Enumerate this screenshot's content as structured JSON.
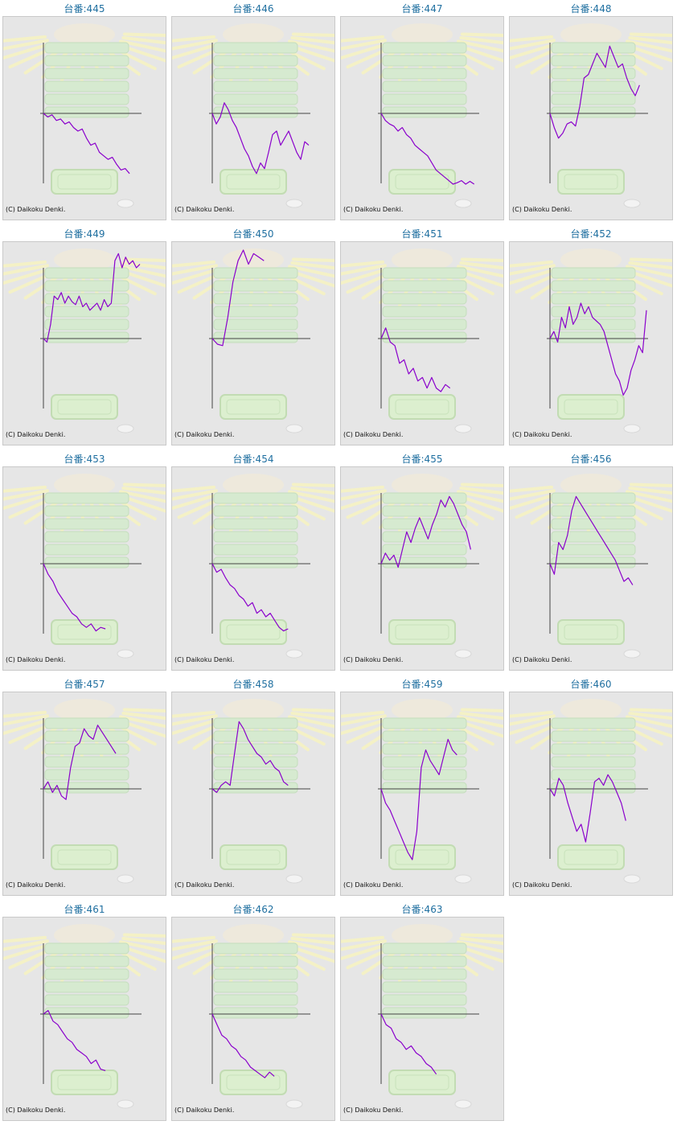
{
  "colors": {
    "title": "#1f6fa0",
    "line": "#8a00cc",
    "axis": "#444444",
    "background": "#e6e6e6"
  },
  "copyright": "(C) Daikoku Denki.",
  "title_prefix": "台番:",
  "chart_data": [
    {
      "type": "line",
      "title": "台番:445",
      "values": [
        0,
        -0.05,
        -0.02,
        -0.1,
        -0.08,
        -0.15,
        -0.12,
        -0.2,
        -0.25,
        -0.22,
        -0.35,
        -0.45,
        -0.42,
        -0.55,
        -0.6,
        -0.65,
        -0.62,
        -0.72,
        -0.8,
        -0.78,
        -0.85
      ]
    },
    {
      "type": "line",
      "title": "台番:446",
      "values": [
        0,
        -0.15,
        -0.05,
        0.15,
        0.05,
        -0.1,
        -0.2,
        -0.35,
        -0.5,
        -0.6,
        -0.75,
        -0.85,
        -0.7,
        -0.78,
        -0.55,
        -0.3,
        -0.25,
        -0.45,
        -0.35,
        -0.25,
        -0.4,
        -0.55,
        -0.65,
        -0.4,
        -0.45
      ]
    },
    {
      "type": "line",
      "title": "台番:447",
      "values": [
        0,
        -0.1,
        -0.15,
        -0.18,
        -0.25,
        -0.2,
        -0.3,
        -0.35,
        -0.45,
        -0.5,
        -0.55,
        -0.6,
        -0.7,
        -0.8,
        -0.85,
        -0.9,
        -0.95,
        -1,
        -0.98,
        -0.95,
        -1,
        -0.96,
        -1
      ]
    },
    {
      "type": "line",
      "title": "台番:448",
      "values": [
        0,
        -0.2,
        -0.35,
        -0.28,
        -0.15,
        -0.12,
        -0.18,
        0.1,
        0.5,
        0.55,
        0.7,
        0.85,
        0.75,
        0.65,
        0.95,
        0.8,
        0.65,
        0.7,
        0.5,
        0.35,
        0.25,
        0.4
      ]
    },
    {
      "type": "line",
      "title": "台番:449",
      "values": [
        0,
        -0.05,
        0.2,
        0.6,
        0.55,
        0.65,
        0.5,
        0.6,
        0.52,
        0.48,
        0.6,
        0.45,
        0.5,
        0.4,
        0.45,
        0.5,
        0.4,
        0.55,
        0.45,
        0.5,
        1.1,
        1.2,
        1.0,
        1.15,
        1.05,
        1.1,
        1.0,
        1.05
      ]
    },
    {
      "type": "line",
      "title": "台番:450",
      "values": [
        0,
        -0.08,
        -0.1,
        0.3,
        0.8,
        1.1,
        1.25,
        1.05,
        1.2,
        1.15,
        1.1
      ]
    },
    {
      "type": "line",
      "title": "台番:451",
      "values": [
        0,
        0.15,
        -0.05,
        -0.1,
        -0.35,
        -0.3,
        -0.5,
        -0.42,
        -0.6,
        -0.55,
        -0.7,
        -0.55,
        -0.7,
        -0.75,
        -0.65,
        -0.7
      ]
    },
    {
      "type": "line",
      "title": "台番:452",
      "values": [
        0,
        0.1,
        -0.05,
        0.3,
        0.15,
        0.45,
        0.2,
        0.3,
        0.5,
        0.35,
        0.45,
        0.3,
        0.25,
        0.2,
        0.1,
        -0.1,
        -0.3,
        -0.5,
        -0.6,
        -0.8,
        -0.7,
        -0.45,
        -0.3,
        -0.1,
        -0.2,
        0.4
      ]
    },
    {
      "type": "line",
      "title": "台番:453",
      "values": [
        0,
        -0.15,
        -0.25,
        -0.4,
        -0.5,
        -0.6,
        -0.7,
        -0.75,
        -0.85,
        -0.9,
        -0.85,
        -0.95,
        -0.9,
        -0.92
      ]
    },
    {
      "type": "line",
      "title": "台番:454",
      "values": [
        0,
        -0.12,
        -0.08,
        -0.2,
        -0.3,
        -0.35,
        -0.45,
        -0.5,
        -0.6,
        -0.55,
        -0.7,
        -0.65,
        -0.75,
        -0.7,
        -0.8,
        -0.9,
        -0.95,
        -0.92
      ]
    },
    {
      "type": "line",
      "title": "台番:455",
      "values": [
        0,
        0.15,
        0.05,
        0.12,
        -0.05,
        0.2,
        0.45,
        0.3,
        0.5,
        0.65,
        0.5,
        0.35,
        0.55,
        0.7,
        0.9,
        0.8,
        0.95,
        0.85,
        0.7,
        0.55,
        0.45,
        0.2
      ]
    },
    {
      "type": "line",
      "title": "台番:456",
      "values": [
        0,
        -0.15,
        0.3,
        0.2,
        0.4,
        0.75,
        0.95,
        0.85,
        0.75,
        0.65,
        0.55,
        0.45,
        0.35,
        0.25,
        0.15,
        0.05,
        -0.1,
        -0.25,
        -0.2,
        -0.3
      ]
    },
    {
      "type": "line",
      "title": "台番:457",
      "values": [
        0,
        0.1,
        -0.05,
        0.05,
        -0.1,
        -0.15,
        0.3,
        0.6,
        0.65,
        0.85,
        0.75,
        0.7,
        0.9,
        0.8,
        0.7,
        0.6,
        0.5
      ]
    },
    {
      "type": "line",
      "title": "台番:458",
      "values": [
        0,
        -0.05,
        0.05,
        0.1,
        0.05,
        0.5,
        0.95,
        0.85,
        0.7,
        0.6,
        0.5,
        0.45,
        0.35,
        0.4,
        0.3,
        0.25,
        0.1,
        0.05
      ]
    },
    {
      "type": "line",
      "title": "台番:459",
      "values": [
        0,
        -0.2,
        -0.3,
        -0.45,
        -0.6,
        -0.75,
        -0.9,
        -1.0,
        -0.6,
        0.3,
        0.55,
        0.4,
        0.3,
        0.2,
        0.45,
        0.7,
        0.55,
        0.48
      ]
    },
    {
      "type": "line",
      "title": "台番:460",
      "values": [
        0,
        -0.1,
        0.15,
        0.05,
        -0.2,
        -0.4,
        -0.6,
        -0.5,
        -0.75,
        -0.35,
        0.1,
        0.15,
        0.05,
        0.2,
        0.1,
        -0.05,
        -0.2,
        -0.45
      ]
    },
    {
      "type": "line",
      "title": "台番:461",
      "values": [
        0,
        0.05,
        -0.1,
        -0.15,
        -0.25,
        -0.35,
        -0.4,
        -0.5,
        -0.55,
        -0.6,
        -0.7,
        -0.65,
        -0.78,
        -0.8
      ]
    },
    {
      "type": "line",
      "title": "台番:462",
      "values": [
        0,
        -0.15,
        -0.3,
        -0.35,
        -0.45,
        -0.5,
        -0.6,
        -0.65,
        -0.75,
        -0.8,
        -0.85,
        -0.9,
        -0.82,
        -0.88
      ]
    },
    {
      "type": "line",
      "title": "台番:463",
      "values": [
        0,
        -0.15,
        -0.2,
        -0.35,
        -0.4,
        -0.5,
        -0.45,
        -0.55,
        -0.6,
        -0.7,
        -0.75,
        -0.85
      ]
    }
  ]
}
